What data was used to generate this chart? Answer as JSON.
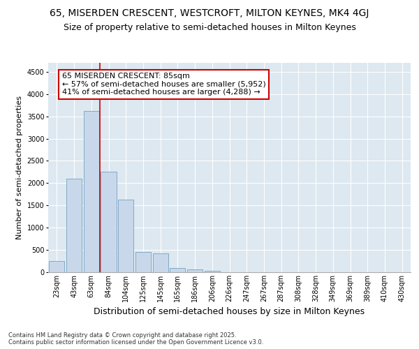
{
  "title1": "65, MISERDEN CRESCENT, WESTCROFT, MILTON KEYNES, MK4 4GJ",
  "title2": "Size of property relative to semi-detached houses in Milton Keynes",
  "xlabel": "Distribution of semi-detached houses by size in Milton Keynes",
  "ylabel": "Number of semi-detached properties",
  "categories": [
    "23sqm",
    "43sqm",
    "63sqm",
    "84sqm",
    "104sqm",
    "125sqm",
    "145sqm",
    "165sqm",
    "186sqm",
    "206sqm",
    "226sqm",
    "247sqm",
    "267sqm",
    "287sqm",
    "308sqm",
    "328sqm",
    "349sqm",
    "369sqm",
    "389sqm",
    "410sqm",
    "430sqm"
  ],
  "values": [
    250,
    2100,
    3620,
    2250,
    1630,
    450,
    430,
    100,
    55,
    30,
    0,
    0,
    0,
    0,
    0,
    0,
    0,
    0,
    0,
    0,
    0
  ],
  "bar_color": "#c8d8ea",
  "bar_edge_color": "#7faac8",
  "vline_color": "#cc0000",
  "annotation_text": "65 MISERDEN CRESCENT: 85sqm\n← 57% of semi-detached houses are smaller (5,952)\n41% of semi-detached houses are larger (4,288) →",
  "annotation_box_color": "#cc0000",
  "ylim": [
    0,
    4700
  ],
  "yticks": [
    0,
    500,
    1000,
    1500,
    2000,
    2500,
    3000,
    3500,
    4000,
    4500
  ],
  "background_color": "#dde8f0",
  "grid_color": "#ffffff",
  "footer": "Contains HM Land Registry data © Crown copyright and database right 2025.\nContains public sector information licensed under the Open Government Licence v3.0.",
  "title1_fontsize": 10,
  "title2_fontsize": 9,
  "xlabel_fontsize": 9,
  "ylabel_fontsize": 8,
  "tick_fontsize": 7,
  "annotation_fontsize": 8,
  "footer_fontsize": 6
}
